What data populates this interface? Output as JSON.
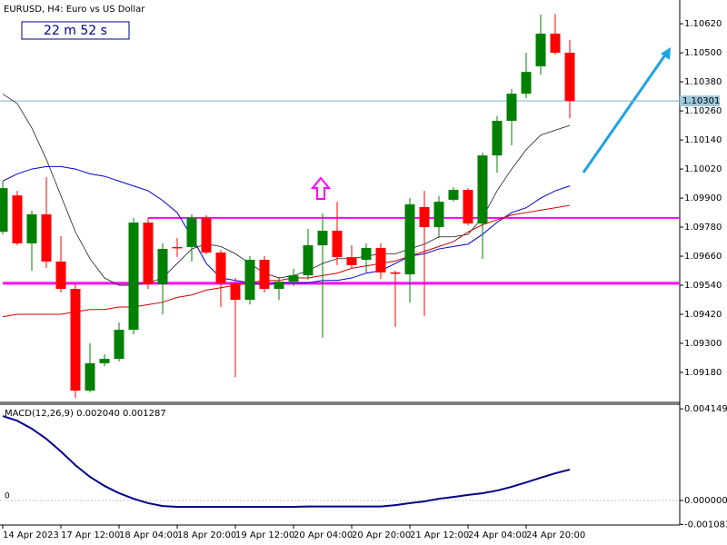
{
  "chart_data": [
    {
      "type": "candlestick",
      "title": "EURUSD, H4:  Euro vs US Dollar",
      "timer": "22 m 52 s",
      "categories": [
        "14 Apr 2023",
        null,
        null,
        null,
        "17 Apr 12:00",
        null,
        null,
        null,
        "18 Apr 04:00",
        null,
        null,
        null,
        "18 Apr 20:00",
        null,
        null,
        null,
        "19 Apr 12:00",
        null,
        null,
        null,
        "20 Apr 04:00",
        null,
        null,
        null,
        "20 Apr 20:00",
        null,
        null,
        null,
        "21 Apr 12:00",
        null,
        null,
        null,
        "24 Apr 04:00",
        null,
        null,
        null,
        "24 Apr 20:00",
        null,
        null,
        null
      ],
      "open": [
        1.09761,
        1.09911,
        1.09713,
        1.09833,
        1.09638,
        1.09525,
        1.09105,
        1.09218,
        1.09236,
        1.09356,
        1.09799,
        1.09544,
        1.09698,
        1.09698,
        1.09818,
        1.09675,
        1.09548,
        1.0948,
        1.09645,
        1.09525,
        1.09555,
        1.09581,
        1.09705,
        1.09765,
        1.09656,
        1.09645,
        1.09694,
        1.09593,
        1.09585,
        1.09863,
        1.0978,
        1.09893,
        1.09934,
        1.09795,
        1.10076,
        1.10219,
        1.10331,
        1.10444,
        1.10579,
        1.105
      ],
      "high": [
        1.09968,
        1.0993,
        1.09848,
        1.09986,
        1.09743,
        1.09548,
        1.093,
        1.09255,
        1.09386,
        1.09818,
        1.09818,
        1.09713,
        1.09735,
        1.09833,
        1.09829,
        1.09686,
        1.0957,
        1.0966,
        1.0966,
        1.09574,
        1.09608,
        1.09773,
        1.09836,
        1.09885,
        1.09705,
        1.09713,
        1.09713,
        1.096,
        1.099,
        1.0993,
        1.09908,
        1.09945,
        1.09941,
        1.10088,
        1.10238,
        1.1035,
        1.105,
        1.10658,
        1.10661,
        1.10553
      ],
      "low": [
        1.0975,
        1.09705,
        1.096,
        1.09611,
        1.0951,
        1.09075,
        1.09098,
        1.09206,
        1.09225,
        1.09338,
        1.09525,
        1.0942,
        1.09656,
        1.09638,
        1.09668,
        1.0945,
        1.09161,
        1.09461,
        1.0951,
        1.0948,
        1.09536,
        1.09563,
        1.09323,
        1.09623,
        1.09608,
        1.09593,
        1.09566,
        1.09368,
        1.09469,
        1.09413,
        1.09735,
        1.09885,
        1.09788,
        1.09649,
        1.10005,
        1.10118,
        1.10313,
        1.1041,
        1.10493,
        1.1023
      ],
      "close": [
        1.09941,
        1.09713,
        1.09833,
        1.09638,
        1.09525,
        1.09105,
        1.09218,
        1.09236,
        1.09356,
        1.09799,
        1.09544,
        1.0969,
        1.09694,
        1.09818,
        1.09675,
        1.09548,
        1.0948,
        1.09645,
        1.09525,
        1.09555,
        1.09581,
        1.09705,
        1.09765,
        1.09656,
        1.09623,
        1.09694,
        1.09593,
        1.09589,
        1.09874,
        1.0978,
        1.09885,
        1.09934,
        1.09795,
        1.10076,
        1.10219,
        1.10331,
        1.10421,
        1.10579,
        1.105,
        1.10301
      ],
      "up_color": "#008000",
      "down_color": "#ff0000",
      "lines": [
        {
          "color": "#1a1a1a",
          "values": [
            1.1033,
            1.1029,
            1.1019,
            1.1006,
            1.0991,
            1.0976,
            1.0965,
            1.0957,
            1.0954,
            1.0954,
            1.0955,
            1.0957,
            1.0963,
            1.0969,
            1.0971,
            1.097,
            1.0967,
            1.0963,
            1.0959,
            1.0957,
            1.0958,
            1.096,
            1.0963,
            1.0965,
            1.0965,
            1.0966,
            1.0967,
            1.0967,
            1.0969,
            1.0971,
            1.0974,
            1.0974,
            1.0975,
            1.0982,
            1.0993,
            1.1002,
            1.101,
            1.1016,
            1.1018,
            1.102
          ]
        },
        {
          "color": "#0000cc",
          "values": [
            1.0997,
            1.1,
            1.1002,
            1.1003,
            1.1003,
            1.1002,
            1.1,
            1.0999,
            1.0997,
            1.0995,
            1.0993,
            1.0989,
            1.0984,
            1.0974,
            1.0963,
            1.0957,
            1.0956,
            1.0955,
            1.0954,
            1.0955,
            1.0955,
            1.0955,
            1.0956,
            1.0956,
            1.0957,
            1.0959,
            1.096,
            1.0963,
            1.0966,
            1.0967,
            1.0969,
            1.097,
            1.0971,
            1.0975,
            1.098,
            1.0984,
            1.0986,
            1.099,
            1.0993,
            1.0995
          ]
        },
        {
          "color": "#cc0000",
          "values": [
            1.0941,
            1.0942,
            1.0942,
            1.0942,
            1.0942,
            1.0943,
            1.0944,
            1.0944,
            1.0945,
            1.0945,
            1.0946,
            1.0947,
            1.0949,
            1.095,
            1.0952,
            1.0953,
            1.0954,
            1.0955,
            1.0956,
            1.0956,
            1.0957,
            1.0957,
            1.0958,
            1.0959,
            1.0961,
            1.0962,
            1.0963,
            1.0964,
            1.0966,
            1.0968,
            1.097,
            1.0972,
            1.0976,
            1.0979,
            1.0981,
            1.0983,
            1.0984,
            1.0985,
            1.0986,
            1.0987
          ]
        }
      ],
      "levels": [
        {
          "value": 1.09818,
          "color": "#ff00ff",
          "from": 10
        },
        {
          "value": 1.09548,
          "color": "#ff00ff",
          "from": 0
        }
      ],
      "current_price": 1.10301,
      "ylim": [
        1.0906,
        1.10718
      ],
      "yticks": [
        {
          "value": 1.1062,
          "label": "1.10620"
        },
        {
          "value": 1.105,
          "label": "1.10500"
        },
        {
          "value": 1.1038,
          "label": "1.10380"
        },
        {
          "value": 1.1026,
          "label": "1.10260"
        },
        {
          "value": 1.1014,
          "label": "1.10140"
        },
        {
          "value": 1.1002,
          "label": "1.10020"
        },
        {
          "value": 1.099,
          "label": "1.09900"
        },
        {
          "value": 1.0978,
          "label": "1.09780"
        },
        {
          "value": 1.0966,
          "label": "1.09660"
        },
        {
          "value": 1.0954,
          "label": "1.09540"
        },
        {
          "value": 1.0942,
          "label": "1.09420"
        },
        {
          "value": 1.093,
          "label": "1.09300"
        },
        {
          "value": 1.0918,
          "label": "1.09180"
        }
      ]
    },
    {
      "type": "line",
      "title": "MACD(12,26,9) 0.002040 0.001287",
      "zero_label": "0",
      "series": [
        {
          "color": "#00008b",
          "values": [
            0.00382,
            0.00361,
            0.00325,
            0.00279,
            0.00222,
            0.0016,
            0.00107,
            0.00066,
            0.00033,
            8e-05,
            -0.00012,
            -0.00025,
            -0.00029,
            -0.00029,
            -0.00029,
            -0.00029,
            -0.00029,
            -0.00029,
            -0.00029,
            -0.00029,
            -0.00029,
            -0.00027,
            -0.00027,
            -0.00027,
            -0.00027,
            -0.00027,
            -0.00027,
            -0.00021,
            -0.00012,
            -4e-05,
            8e-05,
            0.00016,
            0.00025,
            0.00033,
            0.00045,
            0.00062,
            0.00082,
            0.00103,
            0.00123,
            0.0014
          ]
        }
      ],
      "ylim": [
        -0.00111,
        0.0044
      ],
      "yticks": [
        0.004149,
        {
          "value": 0,
          "label": "0.000000"
        },
        -0.001083
      ]
    }
  ]
}
